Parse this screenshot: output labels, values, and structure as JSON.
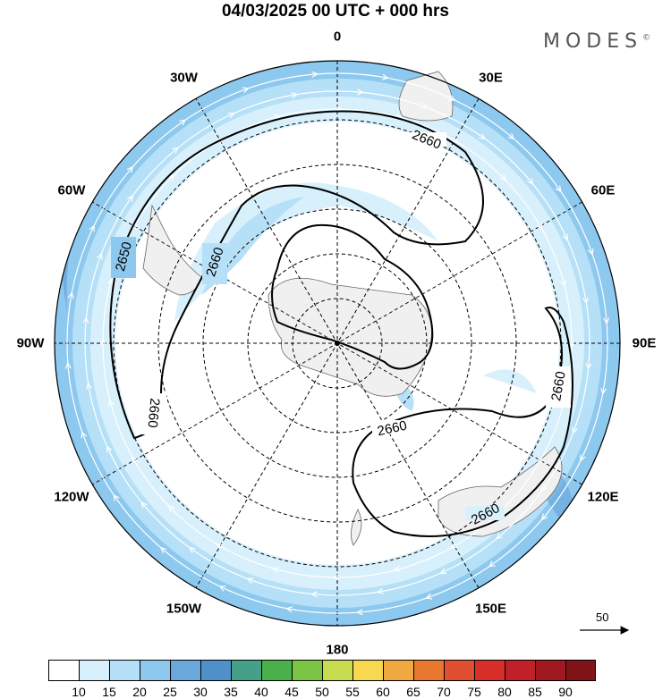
{
  "title": "04/03/2025  00 UTC  + 000 hrs",
  "brand": "MODES",
  "brand_mark": "©",
  "lon_labels": [
    {
      "text": "0",
      "lon": 0
    },
    {
      "text": "30E",
      "lon": 30
    },
    {
      "text": "60E",
      "lon": 60
    },
    {
      "text": "90E",
      "lon": 90
    },
    {
      "text": "120E",
      "lon": 120
    },
    {
      "text": "150E",
      "lon": 150
    },
    {
      "text": "180",
      "lon": 180
    },
    {
      "text": "150W",
      "lon": -150
    },
    {
      "text": "120W",
      "lon": -120
    },
    {
      "text": "90W",
      "lon": -90
    },
    {
      "text": "60W",
      "lon": -60
    },
    {
      "text": "30W",
      "lon": -30
    }
  ],
  "contour_labels": [
    "2660",
    "2650",
    "2660",
    "2660",
    "2660",
    "2660",
    "2660"
  ],
  "reference_vector": "50",
  "colorbar": {
    "colors": [
      "#ffffff",
      "#d8f0fc",
      "#b6e0f7",
      "#8dc8ef",
      "#6aa8dc",
      "#5090c8",
      "#45a08a",
      "#4ab04a",
      "#7cc444",
      "#c8dc50",
      "#f8d850",
      "#f0a840",
      "#e87830",
      "#e05030",
      "#d83028",
      "#c02028",
      "#a01820",
      "#801418"
    ],
    "ticks": [
      "10",
      "15",
      "20",
      "25",
      "30",
      "35",
      "40",
      "45",
      "50",
      "55",
      "60",
      "65",
      "70",
      "75",
      "80",
      "85",
      "90"
    ]
  }
}
